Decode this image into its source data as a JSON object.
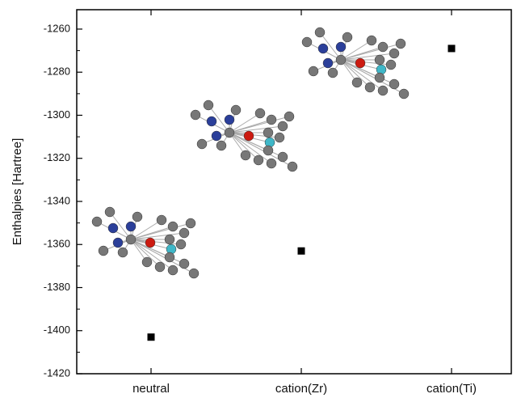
{
  "chart_data": {
    "type": "scatter",
    "y_label": "Enthalpies [Hartree]",
    "categories": [
      "neutral",
      "cation(Zr)",
      "cation(Ti)"
    ],
    "values": [
      -1403,
      -1363,
      -1269
    ],
    "color": "#000000",
    "ylim": [
      -1420,
      -1251
    ],
    "yticks": [
      -1420,
      -1400,
      -1380,
      -1360,
      -1340,
      -1320,
      -1300,
      -1280,
      -1260
    ]
  }
}
